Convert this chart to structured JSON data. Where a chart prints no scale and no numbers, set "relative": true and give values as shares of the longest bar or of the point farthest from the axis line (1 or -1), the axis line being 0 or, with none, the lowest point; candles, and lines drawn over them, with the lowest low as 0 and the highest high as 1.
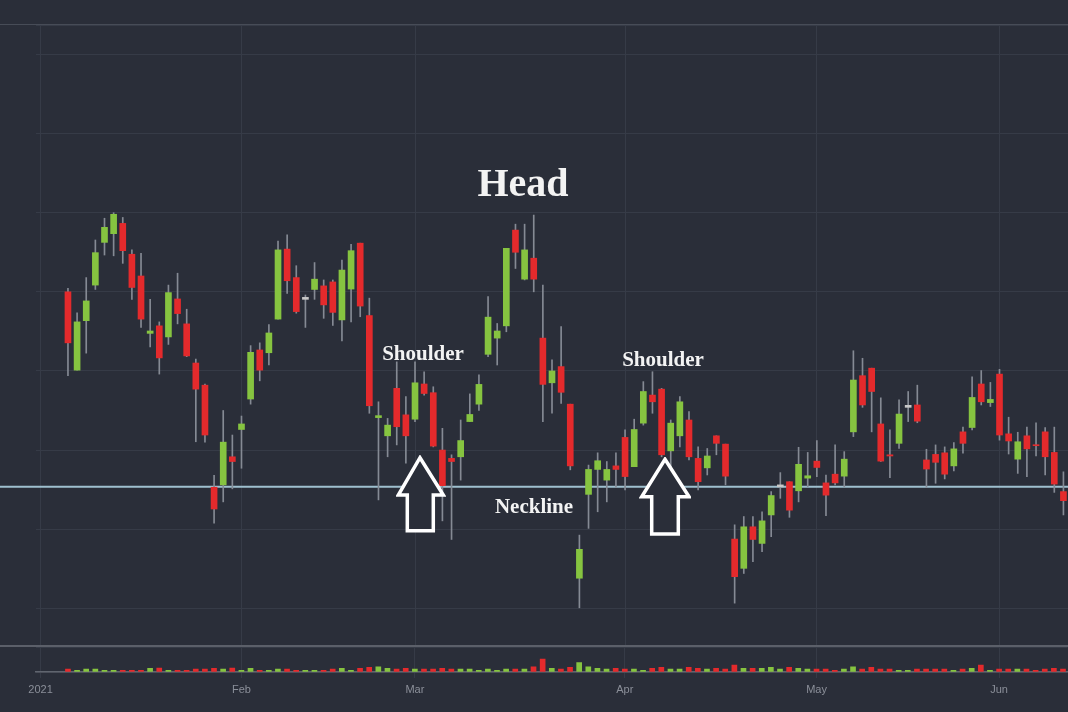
{
  "chart_data": [
    {
      "type": "candlestick",
      "relative": true,
      "grid": true,
      "categories": [
        null,
        null,
        null,
        null,
        null,
        null,
        null,
        null,
        null,
        null,
        null,
        null,
        null,
        null,
        null,
        null,
        null,
        null,
        null,
        null,
        null,
        null,
        null,
        null,
        null,
        null,
        null,
        null,
        null,
        null,
        null,
        null,
        null,
        null,
        null,
        null,
        null,
        null,
        null,
        null,
        null,
        null,
        null,
        null,
        null,
        null,
        null,
        null,
        null,
        null,
        null,
        null,
        null,
        null,
        null,
        null,
        null,
        null,
        null,
        null,
        null,
        null,
        null,
        null,
        null,
        null,
        null,
        null,
        null,
        null,
        null,
        null,
        null,
        null,
        null,
        null,
        null,
        null,
        null,
        null,
        null,
        null,
        null,
        null,
        null,
        null,
        null,
        null,
        null,
        null,
        null,
        null,
        null,
        null,
        null,
        null,
        null,
        null,
        null,
        null,
        null,
        null,
        null,
        null,
        null,
        null,
        null,
        null,
        null,
        null,
        null,
        null,
        null
      ],
      "ohlc": [
        null,
        null,
        null,
        [
          0.8,
          0.809,
          0.588,
          0.671
        ],
        [
          0.602,
          0.747,
          0.602,
          0.724
        ],
        [
          0.727,
          0.836,
          0.645,
          0.777
        ],
        [
          0.817,
          0.931,
          0.806,
          0.899
        ],
        [
          0.925,
          0.986,
          0.893,
          0.963
        ],
        [
          0.947,
          1,
          0.891,
          0.996
        ],
        [
          0.973,
          0.988,
          0.872,
          0.904
        ],
        [
          0.895,
          0.906,
          0.781,
          0.811
        ],
        [
          0.84,
          0.897,
          0.71,
          0.731
        ],
        [
          0.695,
          0.781,
          0.661,
          0.701
        ],
        [
          0.714,
          0.724,
          0.592,
          0.633
        ],
        [
          0.686,
          0.817,
          0.667,
          0.798
        ],
        [
          0.782,
          0.847,
          0.719,
          0.745
        ],
        [
          0.719,
          0.756,
          0.636,
          0.638
        ],
        [
          0.62,
          0.63,
          0.421,
          0.554
        ],
        [
          0.564,
          0.567,
          0.42,
          0.438
        ],
        [
          0.306,
          0.336,
          0.215,
          0.251
        ],
        [
          0.312,
          0.5,
          0.269,
          0.42
        ],
        [
          0.383,
          0.438,
          0.302,
          0.371
        ],
        [
          0.452,
          0.486,
          0.354,
          0.466
        ],
        [
          0.529,
          0.664,
          0.516,
          0.647
        ],
        [
          0.653,
          0.671,
          0.575,
          0.602
        ],
        [
          0.646,
          0.717,
          0.615,
          0.696
        ],
        [
          0.731,
          0.928,
          0.731,
          0.906
        ],
        [
          0.908,
          0.944,
          0.796,
          0.828
        ],
        [
          0.836,
          0.866,
          0.746,
          0.75
        ],
        [
          0.786,
          0.792,
          0.71,
          0.781
        ],
        [
          0.806,
          0.874,
          0.781,
          0.832
        ],
        [
          0.815,
          0.83,
          0.733,
          0.767
        ],
        [
          0.825,
          0.83,
          0.715,
          0.748
        ],
        [
          0.729,
          0.88,
          0.676,
          0.855
        ],
        [
          0.807,
          0.92,
          0.724,
          0.904
        ],
        [
          0.923,
          0.923,
          0.737,
          0.764
        ],
        [
          0.74,
          0.784,
          0.493,
          0.512
        ],
        [
          0.482,
          0.522,
          0.274,
          0.487
        ],
        [
          0.436,
          0.48,
          0.383,
          0.463
        ],
        [
          0.556,
          0.623,
          0.413,
          0.459
        ],
        [
          0.489,
          0.535,
          0.367,
          0.436
        ],
        [
          0.478,
          0.623,
          0.472,
          0.57
        ],
        [
          0.567,
          0.598,
          0.539,
          0.543
        ],
        [
          0.545,
          0.56,
          0.408,
          0.41
        ],
        [
          0.4,
          0.455,
          0.221,
          0.31
        ],
        [
          0.379,
          0.388,
          0.174,
          0.371
        ],
        [
          0.383,
          0.476,
          0.324,
          0.424
        ],
        [
          0.472,
          0.542,
          0.472,
          0.49
        ],
        [
          0.516,
          0.59,
          0.5,
          0.566
        ],
        [
          0.642,
          0.788,
          0.636,
          0.736
        ],
        [
          0.683,
          0.72,
          0.615,
          0.701
        ],
        [
          0.714,
          0.91,
          0.699,
          0.91
        ],
        [
          0.956,
          0.971,
          0.859,
          0.9
        ],
        [
          0.832,
          0.971,
          0.83,
          0.906
        ],
        [
          0.885,
          0.994,
          0.8,
          0.832
        ],
        [
          0.683,
          0.817,
          0.472,
          0.566
        ],
        [
          0.57,
          0.628,
          0.493,
          0.6
        ],
        [
          0.611,
          0.712,
          0.518,
          0.546
        ],
        [
          0.516,
          0.516,
          0.35,
          0.36
        ],
        [
          0.076,
          0.185,
          0,
          0.149
        ],
        [
          0.288,
          0.362,
          0.202,
          0.351
        ],
        [
          0.351,
          0.393,
          0.244,
          0.373
        ],
        [
          0.324,
          0.371,
          0.269,
          0.351
        ],
        [
          0.36,
          0.393,
          0.306,
          0.351
        ],
        [
          0.432,
          0.451,
          0.299,
          0.333
        ],
        [
          0.358,
          0.478,
          0.358,
          0.452
        ],
        [
          0.468,
          0.573,
          0.463,
          0.548
        ],
        [
          0.539,
          0.598,
          0.493,
          0.522
        ],
        [
          0.554,
          0.556,
          0.383,
          0.388
        ],
        [
          0.398,
          0.476,
          0.358,
          0.468
        ],
        [
          0.436,
          0.535,
          0.408,
          0.522
        ],
        [
          0.476,
          0.497,
          0.375,
          0.383
        ],
        [
          0.379,
          0.408,
          0.299,
          0.32
        ],
        [
          0.355,
          0.404,
          0.337,
          0.385
        ],
        [
          0.436,
          0.436,
          0.388,
          0.417
        ],
        [
          0.415,
          0.415,
          0.312,
          0.334
        ],
        [
          0.175,
          0.211,
          0.013,
          0.08
        ],
        [
          0.101,
          0.232,
          0.088,
          0.206
        ],
        [
          0.206,
          0.232,
          0.118,
          0.174
        ],
        [
          0.164,
          0.244,
          0.143,
          0.221
        ],
        [
          0.236,
          0.295,
          0.181,
          0.285
        ],
        [
          0.312,
          0.343,
          0.278,
          0.307
        ],
        [
          0.32,
          0.32,
          0.23,
          0.248
        ],
        [
          0.297,
          0.407,
          0.269,
          0.364
        ],
        [
          0.329,
          0.394,
          0.307,
          0.335
        ],
        [
          0.372,
          0.424,
          0.333,
          0.356
        ],
        [
          0.317,
          0.337,
          0.234,
          0.286
        ],
        [
          0.339,
          0.413,
          0.312,
          0.317
        ],
        [
          0.334,
          0.396,
          0.307,
          0.377
        ],
        [
          0.446,
          0.651,
          0.434,
          0.577
        ],
        [
          0.588,
          0.632,
          0.508,
          0.514
        ],
        [
          0.607,
          0.607,
          0.446,
          0.548
        ],
        [
          0.466,
          0.532,
          0.371,
          0.372
        ],
        [
          0.388,
          0.451,
          0.33,
          0.385
        ],
        [
          0.417,
          0.527,
          0.404,
          0.491
        ],
        [
          0.513,
          0.548,
          0.472,
          0.508
        ],
        [
          0.514,
          0.564,
          0.469,
          0.473
        ],
        [
          0.375,
          0.402,
          0.306,
          0.352
        ],
        [
          0.389,
          0.413,
          0.316,
          0.369
        ],
        [
          0.393,
          0.408,
          0.327,
          0.339
        ],
        [
          0.36,
          0.419,
          0.347,
          0.403
        ],
        [
          0.446,
          0.458,
          0.392,
          0.417
        ],
        [
          0.457,
          0.585,
          0.451,
          0.533
        ],
        [
          0.567,
          0.601,
          0.514,
          0.522
        ],
        [
          0.52,
          0.571,
          0.51,
          0.528
        ],
        [
          0.592,
          0.604,
          0.425,
          0.438
        ],
        [
          0.441,
          0.483,
          0.39,
          0.423
        ],
        [
          0.377,
          0.445,
          0.341,
          0.421
        ],
        [
          0.436,
          0.458,
          0.333,
          0.403
        ],
        [
          0.413,
          0.469,
          0.385,
          0.411
        ],
        [
          0.446,
          0.457,
          0.337,
          0.383
        ],
        [
          0.394,
          0.458,
          0.293,
          0.314
        ],
        [
          0.295,
          0.345,
          0.236,
          0.272
        ]
      ],
      "colors": [
        null,
        null,
        null,
        "#e42a2c",
        "#86c440",
        "#86c440",
        "#86c440",
        "#86c440",
        "#86c440",
        "#e42a2c",
        "#e42a2c",
        "#e42a2c",
        "#86c440",
        "#e42a2c",
        "#86c440",
        "#e42a2c",
        "#e42a2c",
        "#e42a2c",
        "#e42a2c",
        "#e42a2c",
        "#86c440",
        "#e42a2c",
        "#86c440",
        "#86c440",
        "#e42a2c",
        "#86c440",
        "#86c440",
        "#e42a2c",
        "#e42a2c",
        "#c8c8c8",
        "#86c440",
        "#e42a2c",
        "#e42a2c",
        "#86c440",
        "#86c440",
        "#e42a2c",
        "#e42a2c",
        "#86c440",
        "#86c440",
        "#e42a2c",
        "#e42a2c",
        "#86c440",
        "#e42a2c",
        "#e42a2c",
        "#e42a2c",
        "#e42a2c",
        "#86c440",
        "#86c440",
        "#86c440",
        "#86c440",
        "#86c440",
        "#86c440",
        "#e42a2c",
        "#86c440",
        "#e42a2c",
        "#e42a2c",
        "#86c440",
        "#e42a2c",
        "#e42a2c",
        "#86c440",
        "#86c440",
        "#86c440",
        "#86c440",
        "#e42a2c",
        "#e42a2c",
        "#86c440",
        "#86c440",
        "#e42a2c",
        "#e42a2c",
        "#86c440",
        "#86c440",
        "#e42a2c",
        "#e42a2c",
        "#86c440",
        "#e42a2c",
        "#e42a2c",
        "#e42a2c",
        "#86c440",
        "#e42a2c",
        "#86c440",
        "#86c440",
        "#c8c8c8",
        "#e42a2c",
        "#86c440",
        "#86c440",
        "#e42a2c",
        "#e42a2c",
        "#e42a2c",
        "#86c440",
        "#86c440",
        "#e42a2c",
        "#e42a2c",
        "#e42a2c",
        "#e42a2c",
        "#86c440",
        "#c8c8c8",
        "#e42a2c",
        "#e42a2c",
        "#e42a2c",
        "#e42a2c",
        "#86c440",
        "#e42a2c",
        "#86c440",
        "#e42a2c",
        "#86c440",
        "#e42a2c",
        "#e42a2c",
        "#86c440",
        "#e42a2c",
        "#e42a2c",
        "#e42a2c",
        "#e42a2c",
        "#e42a2c"
      ],
      "ref_lines": [
        {
          "axis": "y",
          "value": 0.307,
          "label": "Neckline",
          "color": "#9fc0cf"
        }
      ],
      "annotations": [
        "Head",
        "Shoulder",
        "Shoulder"
      ]
    },
    {
      "type": "bar",
      "relative": true,
      "grid": true,
      "categories": [
        "2021",
        null,
        null,
        null,
        null,
        null,
        null,
        null,
        null,
        null,
        null,
        null,
        null,
        null,
        null,
        null,
        null,
        null,
        null,
        null,
        null,
        null,
        "Feb",
        null,
        null,
        null,
        null,
        null,
        null,
        null,
        null,
        null,
        null,
        null,
        null,
        null,
        null,
        null,
        null,
        null,
        null,
        "Mar",
        null,
        null,
        null,
        null,
        null,
        null,
        null,
        null,
        null,
        null,
        null,
        null,
        null,
        null,
        null,
        null,
        null,
        null,
        null,
        null,
        null,
        null,
        "Apr",
        null,
        null,
        null,
        null,
        null,
        null,
        null,
        null,
        null,
        null,
        null,
        null,
        null,
        null,
        null,
        null,
        null,
        null,
        null,
        null,
        "May",
        null,
        null,
        null,
        null,
        null,
        null,
        null,
        null,
        null,
        null,
        null,
        null,
        null,
        null,
        null,
        null,
        null,
        null,
        null,
        "Jun",
        null,
        null,
        null,
        null,
        null,
        null,
        null
      ],
      "values": [
        null,
        null,
        null,
        0.23,
        0.13,
        0.23,
        0.23,
        0.13,
        0.13,
        0.13,
        0.13,
        0.13,
        0.28,
        0.31,
        0.13,
        0.13,
        0.13,
        0.23,
        0.23,
        0.28,
        0.23,
        0.31,
        0.13,
        0.28,
        0.13,
        0.13,
        0.23,
        0.23,
        0.13,
        0.13,
        0.13,
        0.13,
        0.23,
        0.28,
        0.13,
        0.28,
        0.36,
        0.41,
        0.28,
        0.23,
        0.28,
        0.23,
        0.23,
        0.23,
        0.28,
        0.23,
        0.23,
        0.23,
        0.13,
        0.23,
        0.13,
        0.23,
        0.23,
        0.23,
        0.41,
        1,
        0.28,
        0.23,
        0.36,
        0.74,
        0.41,
        0.28,
        0.23,
        0.28,
        0.23,
        0.23,
        0.13,
        0.28,
        0.36,
        0.23,
        0.23,
        0.36,
        0.28,
        0.23,
        0.28,
        0.23,
        0.54,
        0.28,
        0.28,
        0.28,
        0.36,
        0.23,
        0.36,
        0.28,
        0.23,
        0.23,
        0.23,
        0.13,
        0.23,
        0.41,
        0.23,
        0.36,
        0.23,
        0.23,
        0.13,
        0.13,
        0.23,
        0.23,
        0.23,
        0.23,
        0.13,
        0.23,
        0.28,
        0.54,
        0.13,
        0.23,
        0.23,
        0.23,
        0.23,
        0.13,
        0.23,
        0.28,
        0.23
      ],
      "colors": [
        null,
        null,
        null,
        "#e42a2c",
        "#86c440",
        "#86c440",
        "#86c440",
        "#86c440",
        "#86c440",
        "#e42a2c",
        "#e42a2c",
        "#e42a2c",
        "#86c440",
        "#e42a2c",
        "#86c440",
        "#e42a2c",
        "#e42a2c",
        "#e42a2c",
        "#e42a2c",
        "#e42a2c",
        "#86c440",
        "#e42a2c",
        "#86c440",
        "#86c440",
        "#e42a2c",
        "#86c440",
        "#86c440",
        "#e42a2c",
        "#e42a2c",
        "#86c440",
        "#86c440",
        "#e42a2c",
        "#e42a2c",
        "#86c440",
        "#86c440",
        "#e42a2c",
        "#e42a2c",
        "#86c440",
        "#86c440",
        "#e42a2c",
        "#e42a2c",
        "#86c440",
        "#e42a2c",
        "#e42a2c",
        "#e42a2c",
        "#e42a2c",
        "#86c440",
        "#86c440",
        "#86c440",
        "#86c440",
        "#86c440",
        "#86c440",
        "#e42a2c",
        "#86c440",
        "#e42a2c",
        "#e42a2c",
        "#86c440",
        "#e42a2c",
        "#e42a2c",
        "#86c440",
        "#86c440",
        "#86c440",
        "#86c440",
        "#e42a2c",
        "#e42a2c",
        "#86c440",
        "#86c440",
        "#e42a2c",
        "#e42a2c",
        "#86c440",
        "#86c440",
        "#e42a2c",
        "#e42a2c",
        "#86c440",
        "#e42a2c",
        "#e42a2c",
        "#e42a2c",
        "#86c440",
        "#e42a2c",
        "#86c440",
        "#86c440",
        "#86c440",
        "#e42a2c",
        "#86c440",
        "#86c440",
        "#e42a2c",
        "#e42a2c",
        "#e42a2c",
        "#86c440",
        "#86c440",
        "#e42a2c",
        "#e42a2c",
        "#e42a2c",
        "#e42a2c",
        "#86c440",
        "#86c440",
        "#e42a2c",
        "#e42a2c",
        "#e42a2c",
        "#e42a2c",
        "#86c440",
        "#e42a2c",
        "#86c440",
        "#e42a2c",
        "#86c440",
        "#e42a2c",
        "#e42a2c",
        "#86c440",
        "#e42a2c",
        "#e42a2c",
        "#e42a2c",
        "#e42a2c",
        "#e42a2c"
      ]
    }
  ]
}
